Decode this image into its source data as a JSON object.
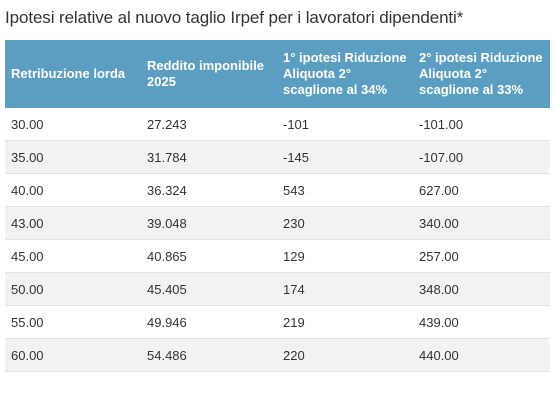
{
  "title": "Ipotesi relative al nuovo taglio Irpef per i lavoratori dipendenti*",
  "table": {
    "headers": [
      "Retribuzione lorda",
      "Reddito imponibile 2025",
      "1° ipotesi Riduzione Aliquota 2° scaglione al 34%",
      "2° ipotesi Riduzione Aliquota 2° scaglione al 33%"
    ],
    "rows": [
      [
        "30.00",
        "27.243",
        "-101",
        "-101.00"
      ],
      [
        "35.00",
        "31.784",
        "-145",
        "-107.00"
      ],
      [
        "40.00",
        "36.324",
        "543",
        "627.00"
      ],
      [
        "43.00",
        "39.048",
        "230",
        "340.00"
      ],
      [
        "45.00",
        "40.865",
        "129",
        "257.00"
      ],
      [
        "50.00",
        "45.405",
        "174",
        "348.00"
      ],
      [
        "55.00",
        "49.946",
        "219",
        "439.00"
      ],
      [
        "60.00",
        "54.486",
        "220",
        "440.00"
      ]
    ]
  },
  "colors": {
    "header_bg": "#5b9ec1",
    "header_text": "#ffffff",
    "stripe": "#f2f2f2"
  }
}
